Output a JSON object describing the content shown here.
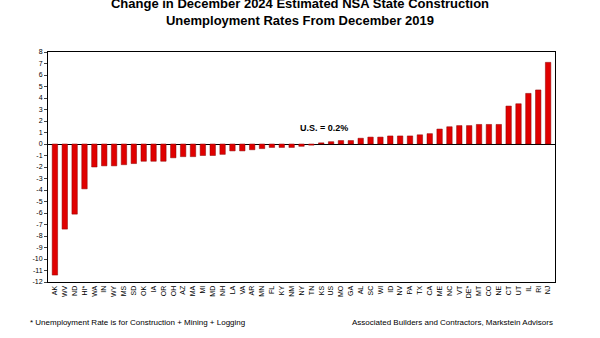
{
  "chart_data": {
    "type": "bar",
    "title": "Change in December 2024 Estimated NSA State Construction",
    "subtitle": "Unemployment Rates From December 2019",
    "categories": [
      "AK",
      "WV",
      "ND",
      "HI*",
      "WA",
      "IN",
      "WY",
      "MS",
      "SD",
      "OK",
      "IA",
      "OR",
      "OH",
      "AZ",
      "MA",
      "MI",
      "MD",
      "NH",
      "LA",
      "VA",
      "AR",
      "MN",
      "FL",
      "KY",
      "NM",
      "NY",
      "TN",
      "KS",
      "US",
      "MO",
      "GA",
      "AL",
      "SC",
      "WI",
      "ID",
      "NV",
      "PA",
      "TX",
      "CA",
      "ME",
      "NC",
      "VT",
      "DE*",
      "MT",
      "CO",
      "NE",
      "CT",
      "UT",
      "IL",
      "RI",
      "NJ"
    ],
    "values": [
      -11.4,
      -7.4,
      -6.1,
      -3.9,
      -2.0,
      -1.9,
      -1.9,
      -1.8,
      -1.7,
      -1.5,
      -1.5,
      -1.5,
      -1.2,
      -1.1,
      -1.1,
      -1.0,
      -1.0,
      -0.9,
      -0.6,
      -0.6,
      -0.5,
      -0.4,
      -0.3,
      -0.3,
      -0.3,
      -0.2,
      -0.1,
      0.1,
      0.2,
      0.3,
      0.3,
      0.5,
      0.6,
      0.6,
      0.7,
      0.7,
      0.7,
      0.8,
      0.9,
      1.3,
      1.5,
      1.6,
      1.6,
      1.7,
      1.7,
      1.7,
      3.3,
      3.5,
      4.4,
      4.7,
      7.1
    ],
    "color": "#e00000",
    "ylim": [
      -12,
      8
    ],
    "yticks": [
      -12,
      -11,
      -10,
      -9,
      -8,
      -7,
      -6,
      -5,
      -4,
      -3,
      -2,
      -1,
      0,
      1,
      2,
      3,
      4,
      5,
      6,
      7,
      8
    ],
    "grid": false,
    "annotations": [
      "U.S. = 0.2%",
      "* Unemployment Rate is for Construction + Mining + Logging",
      "Associated Builders and Contractors, Markstein Advisors"
    ]
  }
}
